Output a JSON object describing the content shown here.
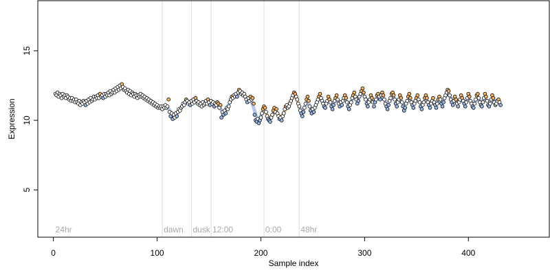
{
  "chart_data": {
    "type": "scatter",
    "title": "",
    "xlabel": "Sample index",
    "ylabel": "Expression",
    "xlim": [
      -15,
      478
    ],
    "ylim": [
      1.6,
      18.6
    ],
    "xticks": [
      0,
      100,
      200,
      300,
      400
    ],
    "yticks": [
      5,
      10,
      15
    ],
    "grid": false,
    "separators": [
      {
        "x": 105,
        "label": "dawn"
      },
      {
        "x": 133,
        "label": "dusk"
      },
      {
        "x": 152,
        "label": "12:00"
      },
      {
        "x": 203,
        "label": "0:00"
      },
      {
        "x": 237,
        "label": "48hr"
      }
    ],
    "start_label": "24hr",
    "colors": {
      "point_orange": "#f0b46a",
      "point_blue": "#9ab8e6",
      "point_white": "#ffffff",
      "band_orange": "#f0c08a",
      "band_blue": "#a9bce0",
      "separator": "#dcdcdc",
      "label_gray": "#a8a8a8"
    },
    "series": [
      {
        "name": "",
        "type": "scatter",
        "x_start": 2,
        "x_step": 1,
        "y": [
          11.9,
          11.8,
          12.0,
          11.7,
          11.9,
          11.8,
          11.6,
          11.9,
          11.7,
          11.8,
          11.6,
          11.8,
          11.7,
          11.5,
          11.6,
          11.4,
          11.6,
          11.4,
          11.5,
          11.3,
          11.5,
          11.3,
          11.2,
          11.4,
          11.1,
          11.3,
          11.2,
          11.4,
          11.3,
          11.1,
          11.4,
          11.2,
          11.5,
          11.3,
          11.6,
          11.4,
          11.5,
          11.7,
          11.5,
          11.7,
          11.6,
          11.8,
          11.6,
          11.9,
          11.7,
          11.8,
          11.6,
          11.9,
          11.7,
          11.9,
          11.8,
          12.0,
          11.8,
          12.1,
          11.9,
          12.0,
          12.2,
          12.0,
          12.3,
          12.1,
          12.4,
          12.2,
          12.5,
          12.3,
          12.6,
          12.4,
          12.2,
          12.3,
          12.1,
          12.0,
          12.2,
          11.9,
          12.1,
          11.8,
          12.0,
          11.9,
          11.7,
          11.9,
          11.8,
          11.6,
          11.8,
          11.7,
          11.9,
          11.7,
          11.8,
          11.6,
          11.7,
          11.5,
          11.6,
          11.4,
          11.5,
          11.3,
          11.4,
          11.2,
          11.3,
          11.1,
          11.2,
          11.0,
          11.1,
          10.9,
          11.0,
          10.9,
          11.0,
          10.8,
          11.0,
          10.9,
          11.1,
          10.9,
          11.0,
          11.5,
          10.6,
          10.3,
          10.5,
          10.1,
          10.4,
          10.2,
          10.5,
          10.3,
          10.6,
          10.8,
          10.7,
          10.9,
          11.0,
          11.2,
          11.1,
          11.3,
          11.5,
          11.4,
          11.2,
          11.3,
          11.1,
          11.4,
          11.2,
          11.5,
          11.3,
          11.6,
          11.4,
          11.2,
          11.3,
          11.1,
          11.2,
          11.0,
          11.3,
          11.1,
          11.2,
          11.4,
          11.2,
          11.5,
          11.3,
          11.1,
          11.4,
          11.2,
          11.3,
          11.0,
          11.2,
          11.1,
          11.3,
          11.2,
          10.9,
          11.1,
          10.2,
          10.6,
          10.4,
          10.7,
          10.5,
          10.9,
          10.8,
          11.0,
          11.3,
          11.5,
          11.7,
          11.6,
          11.8,
          11.7,
          11.9,
          11.7,
          12.0,
          12.2,
          12.1,
          11.9,
          12.0,
          11.8,
          11.9,
          11.7,
          11.5,
          11.3,
          11.6,
          11.4,
          11.7,
          11.5,
          11.6,
          11.2,
          10.4,
          10.0,
          9.9,
          10.1,
          9.8,
          10.0,
          10.2,
          10.5,
          10.8,
          11.0,
          10.9,
          10.6,
          10.3,
          10.1,
          10.0,
          9.9,
          10.2,
          10.4,
          10.7,
          10.9,
          10.6,
          10.8,
          10.5,
          10.3,
          10.1,
          10.2,
          10.0,
          10.3,
          10.5,
          10.8,
          11.0,
          11.1,
          10.9,
          11.0,
          11.2,
          11.4,
          11.6,
          11.8,
          12.0,
          11.9,
          11.7,
          11.5,
          11.2,
          11.0,
          10.7,
          10.5,
          10.3,
          10.6,
          10.9,
          11.2,
          11.5,
          11.7,
          11.4,
          11.0,
          10.7,
          10.5,
          10.8,
          10.6,
          10.9,
          11.1,
          11.3,
          11.5,
          11.7,
          11.9,
          11.6,
          11.4,
          11.2,
          11.0,
          10.9,
          11.2,
          11.4,
          11.7,
          11.5,
          11.3,
          11.0,
          10.8,
          11.1,
          11.4,
          11.6,
          11.8,
          11.5,
          11.2,
          11.0,
          11.3,
          11.1,
          11.4,
          11.6,
          11.8,
          11.6,
          11.3,
          11.0,
          10.8,
          11.1,
          11.3,
          11.6,
          11.8,
          12.0,
          11.7,
          11.5,
          11.2,
          11.4,
          11.7,
          11.9,
          12.1,
          12.3,
          12.0,
          11.7,
          11.5,
          11.2,
          11.0,
          11.3,
          11.5,
          11.8,
          11.6,
          11.3,
          11.0,
          11.3,
          11.5,
          11.8,
          11.9,
          11.7,
          11.5,
          11.8,
          12.0,
          11.8,
          11.5,
          11.2,
          11.0,
          10.8,
          11.1,
          11.4,
          11.6,
          11.9,
          12.0,
          11.8,
          11.5,
          11.2,
          11.0,
          11.3,
          11.5,
          11.8,
          11.6,
          11.3,
          11.0,
          10.7,
          10.9,
          11.2,
          11.4,
          11.7,
          11.9,
          11.6,
          11.3,
          11.1,
          10.9,
          11.2,
          11.4,
          11.6,
          11.8,
          11.5,
          11.3,
          11.0,
          10.8,
          11.1,
          11.3,
          11.6,
          11.8,
          11.6,
          11.3,
          11.1,
          10.9,
          11.2,
          11.4,
          11.6,
          11.3,
          11.1,
          10.9,
          11.2,
          11.5,
          11.7,
          11.5,
          11.2,
          11.0,
          11.3,
          11.6,
          11.8,
          12.0,
          12.2,
          12.1,
          11.8,
          11.5,
          11.3,
          11.1,
          11.4,
          11.7,
          11.5,
          11.2,
          11.0,
          11.3,
          11.5,
          11.8,
          11.6,
          11.4,
          11.2,
          11.0,
          11.3,
          11.6,
          11.9,
          11.7,
          11.4,
          11.2,
          11.0,
          10.9,
          11.2,
          11.5,
          11.8,
          11.9,
          11.6,
          11.3,
          11.1,
          11.0,
          11.3,
          11.6,
          11.9,
          11.7,
          11.4,
          11.1,
          11.0,
          11.2,
          11.5,
          11.8,
          11.6,
          11.3,
          11.1,
          11.2,
          11.4,
          11.5,
          11.3,
          11.1
        ]
      }
    ]
  }
}
